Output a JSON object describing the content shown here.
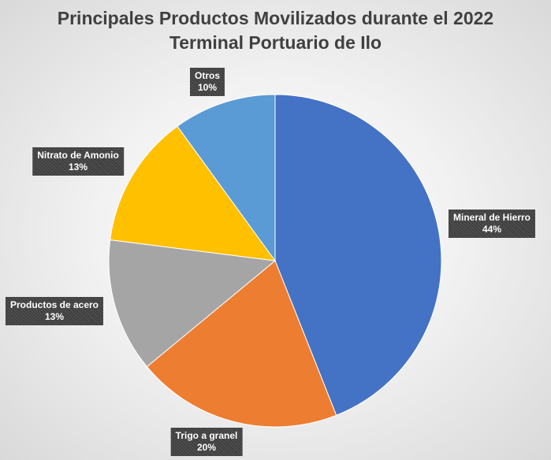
{
  "chart_data": {
    "type": "pie",
    "title": "Principales Productos Movilizados durante el 2022",
    "subtitle": "Terminal Portuario de Ilo",
    "slices": [
      {
        "label": "Mineral de Hierro",
        "value": 44,
        "value_label": "44%",
        "color": "#4472C4"
      },
      {
        "label": "Trigo a granel",
        "value": 20,
        "value_label": "20%",
        "color": "#ED7D31"
      },
      {
        "label": "Productos de acero",
        "value": 13,
        "value_label": "13%",
        "color": "#A5A5A5"
      },
      {
        "label": "Nitrato de Amonio",
        "value": 13,
        "value_label": "13%",
        "color": "#FFC000"
      },
      {
        "label": "Otros",
        "value": 10,
        "value_label": "10%",
        "color": "#5B9BD5"
      }
    ],
    "start_angle_deg": 0,
    "direction": "clockwise",
    "legend": "none",
    "data_labels": "outside-callout"
  }
}
